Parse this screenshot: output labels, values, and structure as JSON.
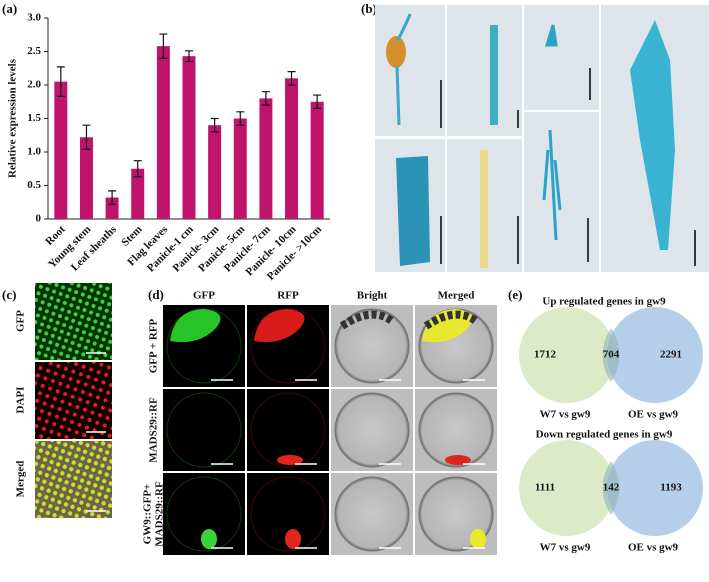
{
  "panel_labels": [
    "(a)",
    "(b)",
    "(c)",
    "(d)",
    "(e)"
  ],
  "chart_data": [
    {
      "type": "bar",
      "y_label": "Relative expression levels",
      "categories": [
        "Root",
        "Young stem",
        "Leaf sheaths",
        "Stem",
        "Flag leaves",
        "Panicle-1 cm",
        "Panicle- 3cm",
        "Panicle- 5cm",
        "Panicle- 7cm",
        "Panicle- 10cm",
        "Panicle- >10cm"
      ],
      "values": [
        2.05,
        1.22,
        0.32,
        0.75,
        2.58,
        2.43,
        1.4,
        1.5,
        1.8,
        2.1,
        1.75
      ],
      "errors": [
        0.22,
        0.18,
        0.1,
        0.12,
        0.18,
        0.08,
        0.1,
        0.1,
        0.1,
        0.1,
        0.1
      ],
      "color": "#c0136b",
      "ylim": [
        0,
        3
      ],
      "yticks": [
        0,
        0.5,
        {
          "value": 1,
          "label": "1.0"
        },
        1.5,
        {
          "value": 2,
          "label": "2.0"
        },
        2.5,
        {
          "value": 3,
          "label": "3.0"
        }
      ]
    },
    {
      "type": "venn",
      "title": "Up regulated genes in gw9",
      "sets": [
        {
          "name": "W7 vs gw9",
          "color": "#d6e6bd"
        },
        {
          "name": "OE vs gw9",
          "color": "#a8c7e8"
        }
      ],
      "values": [
        1712,
        704,
        2291
      ]
    },
    {
      "type": "venn",
      "title": "Down regulated genes in gw9",
      "sets": [
        {
          "name": "W7 vs gw9",
          "color": "#d6e6bd"
        },
        {
          "name": "OE vs gw9",
          "color": "#a8c7e8"
        }
      ],
      "values": [
        1111,
        142,
        1193
      ]
    }
  ],
  "panel_c": {
    "rows": [
      "GFP",
      "DAPI",
      "Merged"
    ]
  },
  "panel_d": {
    "columns": [
      "GFP",
      "RFP",
      "Bright",
      "Merged"
    ],
    "rows": [
      [
        "GFP + RFP"
      ],
      [
        "MADS29::RF"
      ],
      [
        "GW9::GFP+",
        "MADS29::RF"
      ]
    ]
  }
}
